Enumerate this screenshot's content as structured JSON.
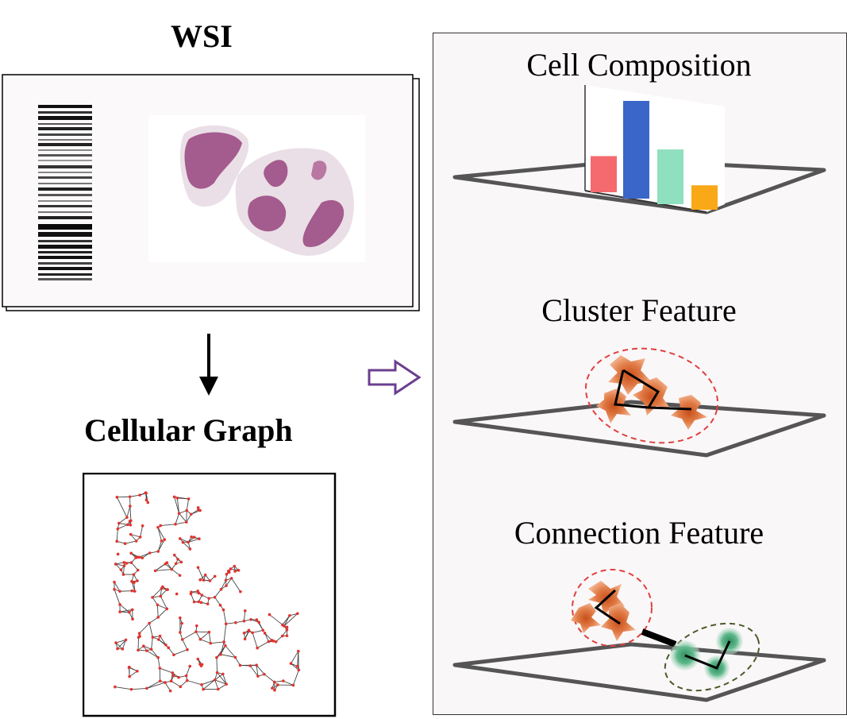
{
  "left": {
    "wsi_title": "WSI",
    "graph_title": "Cellular Graph"
  },
  "right": {
    "labels": {
      "cell_composition": "Cell Composition",
      "cluster_feature": "Cluster Feature",
      "connection_feature": "Connection Feature"
    },
    "bar_colors": [
      "#f46a6f",
      "#3b66c9",
      "#8ee0be",
      "#f9a818"
    ],
    "bar_values": [
      0.37,
      1.0,
      0.56,
      0.25
    ]
  },
  "colors": {
    "stain": "#a45b8e",
    "graph_node": "#e0342f",
    "cell_orange": "#d96a35",
    "cell_green": "#3c9b6c",
    "arrow_purple": "#6b3f8f",
    "panel_bg": "#faf7f8",
    "plane_stroke": "#555555"
  }
}
